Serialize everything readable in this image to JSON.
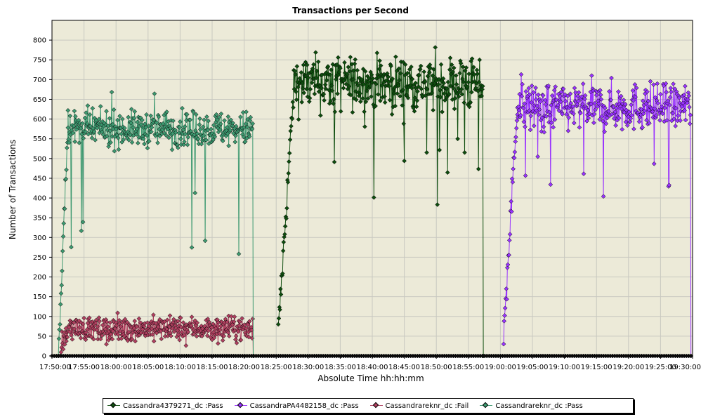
{
  "chart_data": {
    "type": "scatter",
    "title": "Transactions per Second",
    "xlabel": "Absolute Time hh:hh:mm",
    "ylabel": "Number of Transactions",
    "ylim": [
      0,
      850
    ],
    "xlim_minutes": [
      0,
      100
    ],
    "yticks": [
      0,
      50,
      100,
      150,
      200,
      250,
      300,
      350,
      400,
      450,
      500,
      550,
      600,
      650,
      700,
      750,
      800
    ],
    "xticks": [
      "17:50:00",
      "17:55:00",
      "18:00:00",
      "18:05:00",
      "18:10:00",
      "18:15:00",
      "18:20:00",
      "18:25:00",
      "18:30:00",
      "18:35:00",
      "18:40:00",
      "18:45:00",
      "18:50:00",
      "18:55:00",
      "19:00:00",
      "19:05:00",
      "19:10:00",
      "19:15:00",
      "19:20:00",
      "19:25:00",
      "19:30:00"
    ],
    "grid": true,
    "legend_position": "bottom",
    "plot_background": "#ecead8",
    "series": [
      {
        "name": "Cassandra4379271_dc  :Pass",
        "color": "#0e4d0e",
        "segments": [
          {
            "start": "18:25:20",
            "end": "18:27:50",
            "ramp_from": 60,
            "ramp_to": 700
          },
          {
            "start": "18:27:50",
            "end": "18:57:20",
            "mean": 690,
            "spread": 35,
            "min": 380,
            "max": 840
          }
        ]
      },
      {
        "name": "CassandraPA4482158_dc  :Pass",
        "color": "#9933ff",
        "segments": [
          {
            "start": "19:00:30",
            "end": "19:02:40",
            "ramp_from": 50,
            "ramp_to": 640
          },
          {
            "start": "19:02:40",
            "end": "19:29:40",
            "mean": 630,
            "spread": 30,
            "min": 390,
            "max": 715
          }
        ]
      },
      {
        "name": "Cassandrareknr_dc  :Fail",
        "color": "#b04060",
        "segments": [
          {
            "start": "17:51:20",
            "end": "17:52:20",
            "ramp_from": 0,
            "ramp_to": 70
          },
          {
            "start": "17:52:20",
            "end": "18:21:20",
            "mean": 70,
            "spread": 15,
            "min": 25,
            "max": 120
          }
        ]
      },
      {
        "name": "Cassandrareknr_dc  :Pass",
        "color": "#3d9970",
        "segments": [
          {
            "start": "17:51:00",
            "end": "17:52:30",
            "ramp_from": 0,
            "ramp_to": 600
          },
          {
            "start": "17:52:30",
            "end": "18:21:20",
            "mean": 575,
            "spread": 22,
            "min": 255,
            "max": 675
          }
        ]
      }
    ]
  }
}
